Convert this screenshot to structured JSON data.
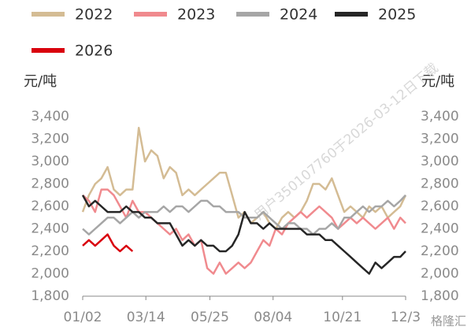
{
  "chart_data": {
    "type": "line",
    "y_label": "元/吨",
    "y2_label": "元/吨",
    "watermark": "用户350107760于2026-03-12日下载",
    "logo": "格隆汇",
    "x": [
      0,
      7,
      14,
      21,
      28,
      35,
      42,
      49,
      56,
      63,
      70,
      77,
      84,
      91,
      98,
      105,
      112,
      119,
      126,
      133,
      140,
      147,
      154,
      161,
      168,
      175,
      182,
      189,
      196,
      203,
      210,
      217,
      224,
      231,
      238,
      245,
      252,
      259,
      266,
      273,
      280,
      287,
      294,
      301,
      308,
      315,
      322,
      329,
      336,
      343,
      350,
      357,
      363
    ],
    "xlim": [
      0,
      363
    ],
    "xticks": [
      {
        "value": 0,
        "label": "01/02"
      },
      {
        "value": 71,
        "label": "03/14"
      },
      {
        "value": 143,
        "label": "05/25"
      },
      {
        "value": 214,
        "label": "08/04"
      },
      {
        "value": 292,
        "label": "10/21"
      },
      {
        "value": 363,
        "label": "12/3"
      }
    ],
    "ylim": [
      1800,
      3400
    ],
    "yticks": [
      {
        "value": 1800,
        "label": "1,800"
      },
      {
        "value": 2000,
        "label": "2,000"
      },
      {
        "value": 2200,
        "label": "2,200"
      },
      {
        "value": 2400,
        "label": "2,400"
      },
      {
        "value": 2600,
        "label": "2,600"
      },
      {
        "value": 2800,
        "label": "2,800"
      },
      {
        "value": 3000,
        "label": "3,000"
      },
      {
        "value": 3200,
        "label": "3,200"
      },
      {
        "value": 3400,
        "label": "3,400"
      }
    ],
    "y2lim": [
      1800,
      3400
    ],
    "y2ticks": [
      {
        "value": 1800,
        "label": "1,800"
      },
      {
        "value": 2000,
        "label": "2,000"
      },
      {
        "value": 2200,
        "label": "2,200"
      },
      {
        "value": 2400,
        "label": "2,400"
      },
      {
        "value": 2600,
        "label": "2,600"
      },
      {
        "value": 2800,
        "label": "2,800"
      },
      {
        "value": 3000,
        "label": "3,000"
      },
      {
        "value": 3200,
        "label": "3,200"
      },
      {
        "value": 3400,
        "label": "3,400"
      }
    ],
    "series": [
      {
        "name": "2022",
        "color": "#d4bc94",
        "values": [
          2550,
          2700,
          2800,
          2850,
          2950,
          2750,
          2700,
          2750,
          2750,
          3300,
          3000,
          3100,
          3050,
          2850,
          2950,
          2900,
          2700,
          2750,
          2700,
          2750,
          2800,
          2850,
          2900,
          2900,
          2700,
          2500,
          2550,
          2450,
          2500,
          2550,
          2450,
          2400,
          2500,
          2550,
          2500,
          2550,
          2650,
          2800,
          2800,
          2750,
          2850,
          2700,
          2550,
          2600,
          2550,
          2500,
          2600,
          2550,
          2600,
          2500,
          2550,
          2600,
          2700
        ]
      },
      {
        "name": "2023",
        "color": "#f08a8e",
        "values": [
          2700,
          2650,
          2550,
          2750,
          2750,
          2700,
          2600,
          2500,
          2650,
          2550,
          2550,
          2500,
          2450,
          2400,
          2350,
          2400,
          2300,
          2350,
          2250,
          2300,
          2050,
          2000,
          2100,
          2000,
          2050,
          2100,
          2050,
          2100,
          2200,
          2300,
          2250,
          2400,
          2350,
          2450,
          2500,
          2550,
          2500,
          2550,
          2600,
          2550,
          2500,
          2400,
          2450,
          2500,
          2450,
          2500,
          2450,
          2400,
          2450,
          2500,
          2400,
          2500,
          2450
        ]
      },
      {
        "name": "2024",
        "color": "#a6a6a6",
        "values": [
          2400,
          2350,
          2400,
          2450,
          2500,
          2500,
          2450,
          2500,
          2550,
          2500,
          2550,
          2550,
          2550,
          2600,
          2550,
          2600,
          2600,
          2550,
          2600,
          2650,
          2650,
          2600,
          2600,
          2550,
          2550,
          2550,
          2500,
          2500,
          2500,
          2550,
          2500,
          2450,
          2400,
          2450,
          2450,
          2400,
          2400,
          2350,
          2400,
          2400,
          2450,
          2400,
          2500,
          2500,
          2550,
          2600,
          2550,
          2600,
          2600,
          2650,
          2600,
          2650,
          2700
        ]
      },
      {
        "name": "2025",
        "color": "#262626",
        "values": [
          2700,
          2600,
          2650,
          2600,
          2550,
          2550,
          2550,
          2600,
          2550,
          2550,
          2500,
          2500,
          2450,
          2450,
          2450,
          2350,
          2250,
          2300,
          2250,
          2300,
          2250,
          2250,
          2200,
          2200,
          2250,
          2350,
          2550,
          2450,
          2450,
          2400,
          2450,
          2400,
          2400,
          2400,
          2400,
          2400,
          2350,
          2350,
          2350,
          2300,
          2300,
          2250,
          2200,
          2150,
          2100,
          2050,
          2000,
          2100,
          2050,
          2100,
          2150,
          2150,
          2200
        ]
      },
      {
        "name": "2026",
        "color": "#d9000d",
        "values": [
          2250,
          2300,
          2250,
          2300,
          2350,
          2250,
          2200,
          2250,
          2200,
          null,
          null,
          null,
          null,
          null,
          null,
          null,
          null,
          null,
          null,
          null,
          null,
          null,
          null,
          null,
          null,
          null,
          null,
          null,
          null,
          null,
          null,
          null,
          null,
          null,
          null,
          null,
          null,
          null,
          null,
          null,
          null,
          null,
          null,
          null,
          null,
          null,
          null,
          null,
          null,
          null,
          null,
          null,
          null
        ]
      }
    ]
  }
}
